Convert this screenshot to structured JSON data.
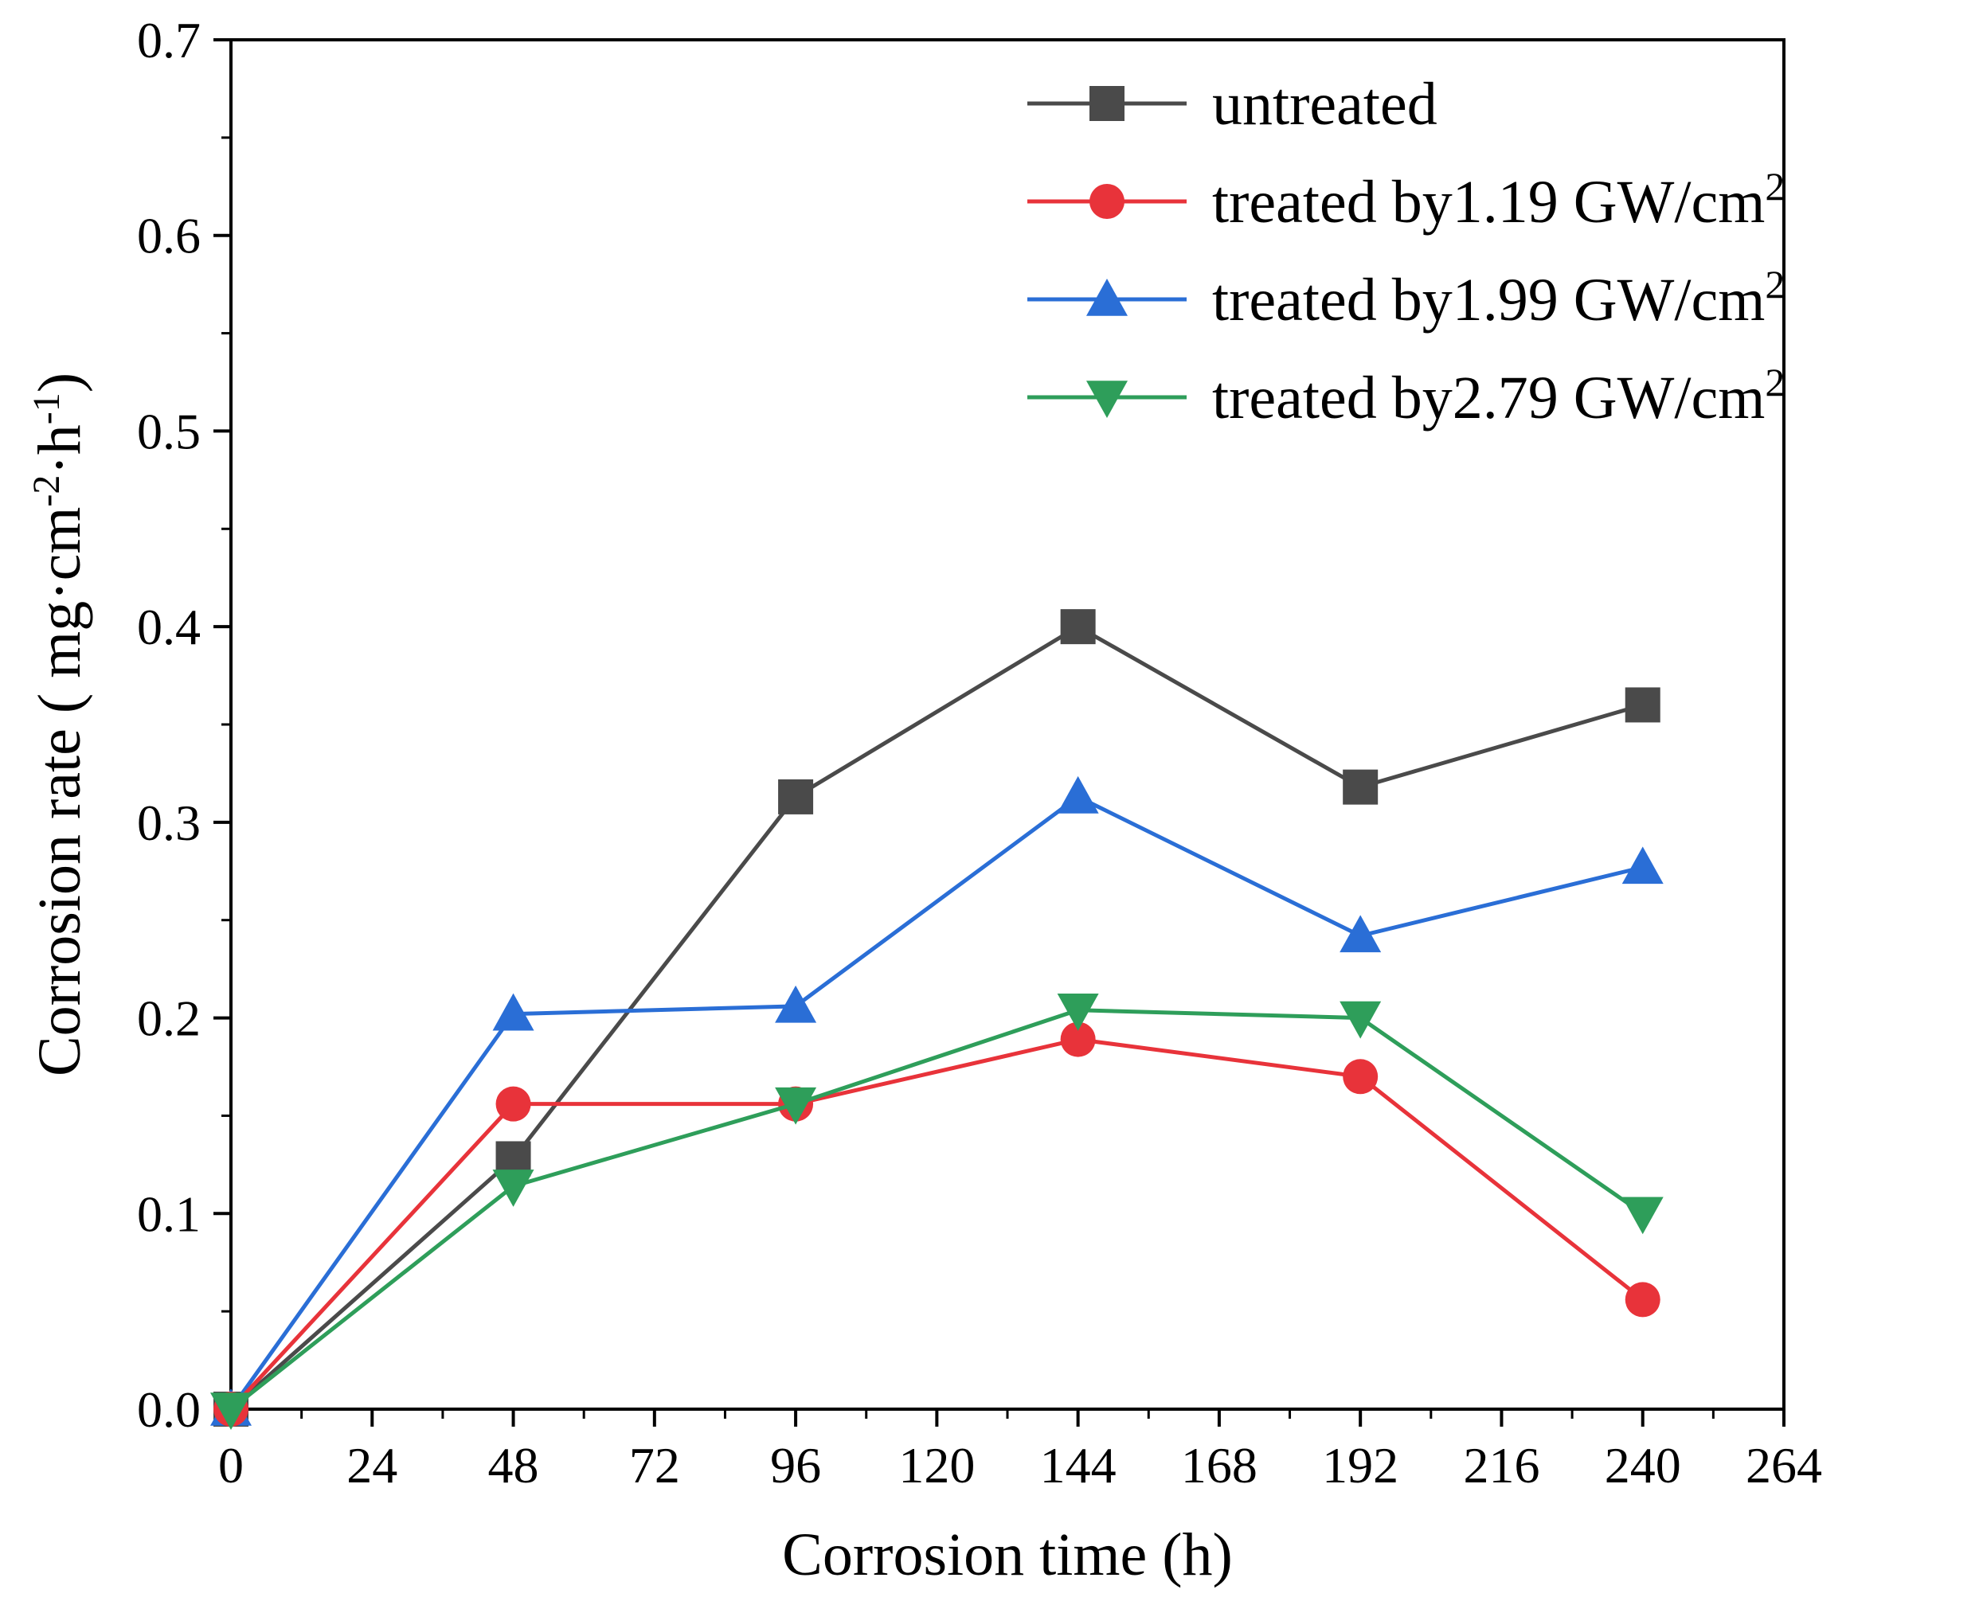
{
  "chart_data": {
    "type": "line",
    "title": "",
    "xlabel": "Corrosion time (h)",
    "ylabel": {
      "text": "Corrosion rate ( mg·cm",
      "sup1": "-2",
      "mid": "·h",
      "sup2": "-1",
      "end": ")"
    },
    "xlim": [
      0,
      264
    ],
    "ylim": [
      0,
      0.7
    ],
    "xticks": [
      0,
      24,
      48,
      72,
      96,
      120,
      144,
      168,
      192,
      216,
      240,
      264
    ],
    "yticks": [
      0.0,
      0.1,
      0.2,
      0.3,
      0.4,
      0.5,
      0.6,
      0.7
    ],
    "ytick_labels": [
      "0.0",
      "0.1",
      "0.2",
      "0.3",
      "0.4",
      "0.5",
      "0.6",
      "0.7"
    ],
    "grid": false,
    "legend_position": "top-right",
    "x": [
      0,
      48,
      96,
      144,
      192,
      240
    ],
    "series": [
      {
        "name": "untreated",
        "legend": {
          "main": "untreated",
          "sup": ""
        },
        "marker": "square",
        "color": "#4a4a4a",
        "values": [
          0.0,
          0.128,
          0.313,
          0.4,
          0.318,
          0.36
        ]
      },
      {
        "name": "treated by1.19 GW/cm2",
        "legend": {
          "main": "treated by1.19 GW/cm",
          "sup": "2"
        },
        "marker": "circle",
        "color": "#e8333a",
        "values": [
          0.0,
          0.156,
          0.156,
          0.189,
          0.17,
          0.056
        ]
      },
      {
        "name": "treated by1.99 GW/cm2",
        "legend": {
          "main": "treated by1.99 GW/cm",
          "sup": "2"
        },
        "marker": "triangle-up",
        "color": "#2a6ed6",
        "values": [
          0.0,
          0.202,
          0.206,
          0.313,
          0.242,
          0.277
        ]
      },
      {
        "name": "treated by2.79 GW/cm2",
        "legend": {
          "main": "treated by2.79 GW/cm",
          "sup": "2"
        },
        "marker": "triangle-down",
        "color": "#2e9e5a",
        "values": [
          0.0,
          0.114,
          0.156,
          0.204,
          0.2,
          0.1
        ]
      }
    ]
  }
}
